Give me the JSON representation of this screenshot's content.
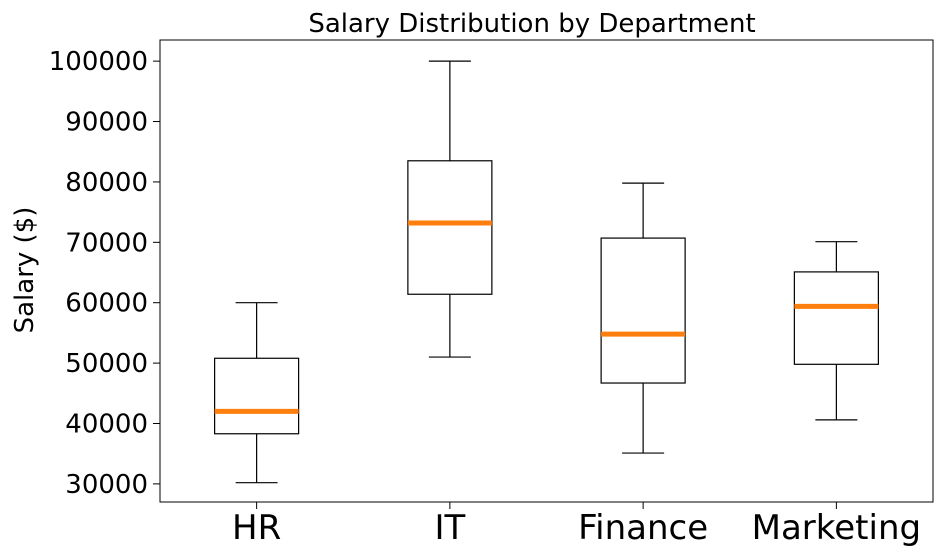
{
  "chart_data": {
    "type": "box",
    "title": "Salary Distribution by Department",
    "xlabel": "",
    "ylabel": "Salary ($)",
    "ylim": [
      27000,
      103500
    ],
    "yticks": [
      30000,
      40000,
      50000,
      60000,
      70000,
      80000,
      90000,
      100000
    ],
    "ytick_labels": [
      "30000",
      "40000",
      "50000",
      "60000",
      "70000",
      "80000",
      "90000",
      "100000"
    ],
    "categories": [
      "HR",
      "IT",
      "Finance",
      "Marketing"
    ],
    "boxes": [
      {
        "category": "HR",
        "whisker_low": 30200,
        "q1": 38300,
        "median": 42000,
        "q3": 50800,
        "whisker_high": 60000
      },
      {
        "category": "IT",
        "whisker_low": 51000,
        "q1": 61400,
        "median": 73200,
        "q3": 83500,
        "whisker_high": 100000
      },
      {
        "category": "Finance",
        "whisker_low": 35100,
        "q1": 46700,
        "median": 54800,
        "q3": 70700,
        "whisker_high": 79800
      },
      {
        "category": "Marketing",
        "whisker_low": 40600,
        "q1": 49800,
        "median": 59400,
        "q3": 65100,
        "whisker_high": 70100
      }
    ],
    "grid": false,
    "colors": {
      "box": "#000000",
      "median": "#ff7f0e"
    }
  }
}
